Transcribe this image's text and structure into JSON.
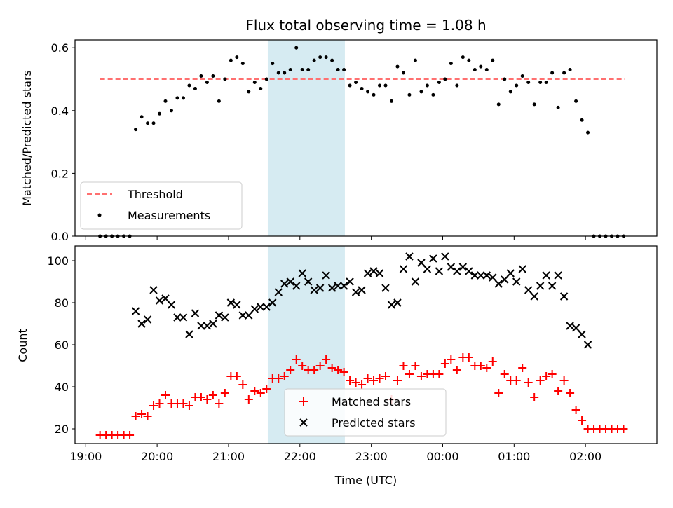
{
  "colors": {
    "band": "#add8e6",
    "threshold": "#ff7070",
    "measurement": "#000000",
    "matched": "#ff0000",
    "predicted": "#000000"
  },
  "chart_data": [
    {
      "type": "scatter",
      "title": "Flux total observing time = 1.08 h",
      "xlabel": "",
      "ylabel": "Matched/Predicted stars",
      "x_unit": "hours since 19:00 UTC",
      "xlim": [
        -0.15,
        8.0
      ],
      "ylim": [
        0.0,
        0.625
      ],
      "yticks": [
        "0.0",
        "0.2",
        "0.4",
        "0.6"
      ],
      "shaded_band": {
        "x_start": 21.55,
        "x_end": 22.63
      },
      "threshold": {
        "label": "Threshold",
        "value": 0.5,
        "x_start": 19.2,
        "x_end": 26.55
      },
      "legend": {
        "position": "lower-left",
        "entries": [
          "Threshold",
          "Measurements"
        ]
      },
      "series": [
        {
          "name": "Measurements",
          "x": [
            "19:12",
            "19:17",
            "19:22",
            "19:27",
            "19:32",
            "19:37",
            "19:42",
            "19:47",
            "19:52",
            "19:57",
            "20:02",
            "20:07",
            "20:12",
            "20:17",
            "20:22",
            "20:27",
            "20:32",
            "20:37",
            "20:42",
            "20:47",
            "20:52",
            "20:57",
            "21:02",
            "21:07",
            "21:12",
            "21:17",
            "21:22",
            "21:27",
            "21:32",
            "21:37",
            "21:42",
            "21:47",
            "21:52",
            "21:57",
            "22:02",
            "22:07",
            "22:12",
            "22:17",
            "22:22",
            "22:27",
            "22:32",
            "22:37",
            "22:42",
            "22:47",
            "22:52",
            "22:57",
            "23:02",
            "23:07",
            "23:12",
            "23:17",
            "23:22",
            "23:27",
            "23:32",
            "23:37",
            "23:42",
            "23:47",
            "23:52",
            "23:57",
            "00:02",
            "00:07",
            "00:12",
            "00:17",
            "00:22",
            "00:27",
            "00:32",
            "00:37",
            "00:42",
            "00:47",
            "00:52",
            "00:57",
            "01:02",
            "01:07",
            "01:12",
            "01:17",
            "01:22",
            "01:27",
            "01:32",
            "01:37",
            "01:42",
            "01:47",
            "01:52",
            "01:57",
            "02:02",
            "02:07",
            "02:12",
            "02:17",
            "02:22",
            "02:27",
            "02:32"
          ],
          "values": [
            0,
            0,
            0,
            0,
            0,
            0,
            0.34,
            0.38,
            0.36,
            0.36,
            0.39,
            0.43,
            0.4,
            0.44,
            0.44,
            0.48,
            0.47,
            0.51,
            0.49,
            0.51,
            0.43,
            0.5,
            0.56,
            0.57,
            0.55,
            0.46,
            0.49,
            0.47,
            0.5,
            0.55,
            0.52,
            0.52,
            0.53,
            0.6,
            0.53,
            0.53,
            0.56,
            0.57,
            0.57,
            0.56,
            0.53,
            0.53,
            0.48,
            0.49,
            0.47,
            0.46,
            0.45,
            0.48,
            0.48,
            0.43,
            0.54,
            0.52,
            0.45,
            0.56,
            0.46,
            0.48,
            0.45,
            0.49,
            0.5,
            0.55,
            0.48,
            0.57,
            0.56,
            0.53,
            0.54,
            0.53,
            0.56,
            0.42,
            0.5,
            0.46,
            0.48,
            0.51,
            0.49,
            0.42,
            0.49,
            0.49,
            0.52,
            0.41,
            0.52,
            0.53,
            0.43,
            0.37,
            0.33,
            0,
            0,
            0,
            0,
            0,
            0
          ]
        }
      ]
    },
    {
      "type": "scatter",
      "title": "",
      "xlabel": "Time (UTC)",
      "ylabel": "Count",
      "x_unit": "hours since 19:00 UTC",
      "xlim": [
        -0.15,
        8.0
      ],
      "ylim": [
        13,
        107
      ],
      "yticks": [
        "20",
        "40",
        "60",
        "80",
        "100"
      ],
      "xticks": [
        "19:00",
        "20:00",
        "21:00",
        "22:00",
        "23:00",
        "00:00",
        "01:00",
        "02:00"
      ],
      "shaded_band": {
        "x_start": 21.55,
        "x_end": 22.63
      },
      "legend": {
        "position": "lower-center",
        "entries": [
          "Matched stars",
          "Predicted stars"
        ]
      },
      "series": [
        {
          "name": "Matched stars",
          "x": [
            "19:12",
            "19:17",
            "19:22",
            "19:27",
            "19:32",
            "19:37",
            "19:42",
            "19:47",
            "19:52",
            "19:57",
            "20:02",
            "20:07",
            "20:12",
            "20:17",
            "20:22",
            "20:27",
            "20:32",
            "20:37",
            "20:42",
            "20:47",
            "20:52",
            "20:57",
            "21:02",
            "21:07",
            "21:12",
            "21:17",
            "21:22",
            "21:27",
            "21:32",
            "21:37",
            "21:42",
            "21:47",
            "21:52",
            "21:57",
            "22:02",
            "22:07",
            "22:12",
            "22:17",
            "22:22",
            "22:27",
            "22:32",
            "22:37",
            "22:42",
            "22:47",
            "22:52",
            "22:57",
            "23:02",
            "23:07",
            "23:12",
            "23:17",
            "23:22",
            "23:27",
            "23:32",
            "23:37",
            "23:42",
            "23:47",
            "23:52",
            "23:57",
            "00:02",
            "00:07",
            "00:12",
            "00:17",
            "00:22",
            "00:27",
            "00:32",
            "00:37",
            "00:42",
            "00:47",
            "00:52",
            "00:57",
            "01:02",
            "01:07",
            "01:12",
            "01:17",
            "01:22",
            "01:27",
            "01:32",
            "01:37",
            "01:42",
            "01:47",
            "01:52",
            "01:57",
            "02:02",
            "02:07",
            "02:12",
            "02:17",
            "02:22",
            "02:27",
            "02:32"
          ],
          "values": [
            17,
            17,
            17,
            17,
            17,
            17,
            26,
            27,
            26,
            31,
            32,
            36,
            32,
            32,
            32,
            31,
            35,
            35,
            34,
            36,
            32,
            37,
            45,
            45,
            41,
            34,
            38,
            37,
            39,
            44,
            44,
            45,
            48,
            53,
            50,
            48,
            48,
            50,
            53,
            49,
            48,
            47,
            43,
            42,
            41,
            44,
            43,
            44,
            45,
            34,
            43,
            50,
            46,
            50,
            45,
            46,
            46,
            46,
            51,
            53,
            48,
            54,
            54,
            50,
            50,
            49,
            52,
            37,
            46,
            43,
            43,
            49,
            42,
            35,
            43,
            45,
            46,
            38,
            43,
            37,
            29,
            24,
            20,
            20,
            20,
            20,
            20,
            20,
            20
          ]
        },
        {
          "name": "Predicted stars",
          "x": [
            "19:42",
            "19:47",
            "19:52",
            "19:57",
            "20:02",
            "20:07",
            "20:12",
            "20:17",
            "20:22",
            "20:27",
            "20:32",
            "20:37",
            "20:42",
            "20:47",
            "20:52",
            "20:57",
            "21:02",
            "21:07",
            "21:12",
            "21:17",
            "21:22",
            "21:27",
            "21:32",
            "21:37",
            "21:42",
            "21:47",
            "21:52",
            "21:57",
            "22:02",
            "22:07",
            "22:12",
            "22:17",
            "22:22",
            "22:27",
            "22:32",
            "22:37",
            "22:42",
            "22:47",
            "22:52",
            "22:57",
            "23:02",
            "23:07",
            "23:12",
            "23:17",
            "23:22",
            "23:27",
            "23:32",
            "23:37",
            "23:42",
            "23:47",
            "23:52",
            "23:57",
            "00:02",
            "00:07",
            "00:12",
            "00:17",
            "00:22",
            "00:27",
            "00:32",
            "00:37",
            "00:42",
            "00:47",
            "00:52",
            "00:57",
            "01:02",
            "01:07",
            "01:12",
            "01:17",
            "01:22",
            "01:27",
            "01:32",
            "01:37",
            "01:42",
            "01:47",
            "01:52",
            "01:57",
            "02:02"
          ],
          "values": [
            76,
            70,
            72,
            86,
            81,
            82,
            79,
            73,
            73,
            65,
            75,
            69,
            69,
            70,
            74,
            73,
            80,
            79,
            74,
            74,
            77,
            78,
            78,
            80,
            85,
            89,
            90,
            88,
            94,
            90,
            86,
            87,
            93,
            87,
            88,
            88,
            90,
            85,
            86,
            94,
            95,
            94,
            87,
            79,
            80,
            96,
            102,
            90,
            99,
            96,
            101,
            95,
            102,
            97,
            95,
            97,
            95,
            93,
            93,
            93,
            92,
            89,
            91,
            94,
            90,
            96,
            86,
            83,
            88,
            93,
            88,
            93,
            83,
            69,
            68,
            65,
            60
          ]
        }
      ]
    }
  ]
}
